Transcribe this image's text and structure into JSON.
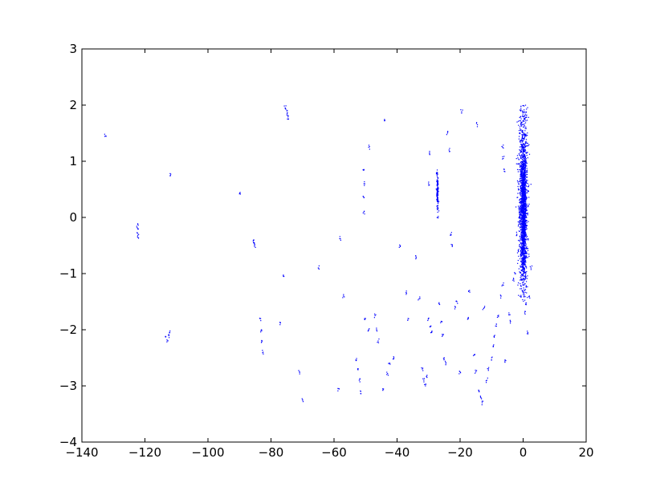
{
  "chart_data": {
    "type": "scatter",
    "title": "",
    "xlabel": "",
    "ylabel": "",
    "xlim": [
      -140,
      20
    ],
    "ylim": [
      -4,
      3
    ],
    "xticks": [
      -140,
      -120,
      -100,
      -80,
      -60,
      -40,
      -20,
      0,
      20
    ],
    "yticks": [
      -4,
      -3,
      -2,
      -1,
      0,
      1,
      2,
      3
    ],
    "xtick_labels": [
      "−140",
      "−120",
      "−100",
      "−80",
      "−60",
      "−40",
      "−20",
      "0",
      "20"
    ],
    "ytick_labels": [
      "−4",
      "−3",
      "−2",
      "−1",
      "0",
      "1",
      "2",
      "3"
    ],
    "grid": false,
    "legend": "none",
    "marker_color": "#0000ff",
    "series": [
      {
        "values": [
          [
            -132.5,
            1.45
          ],
          [
            -122.3,
            -0.12
          ],
          [
            -122.3,
            -0.2
          ],
          [
            -122.3,
            -0.28
          ],
          [
            -122.3,
            -0.35
          ],
          [
            -113.5,
            -2.12
          ],
          [
            -113.0,
            -2.18
          ],
          [
            -112.5,
            -2.1
          ],
          [
            -112.2,
            -2.05
          ],
          [
            -112.0,
            0.78
          ],
          [
            -90.0,
            0.42
          ],
          [
            -85.5,
            -0.4
          ],
          [
            -85.3,
            -0.45
          ],
          [
            -85.2,
            -0.5
          ],
          [
            -83.5,
            -1.8
          ],
          [
            -83.0,
            -2.0
          ],
          [
            -82.8,
            -2.2
          ],
          [
            -82.5,
            -2.4
          ],
          [
            -77.0,
            -1.88
          ],
          [
            -76.0,
            -1.05
          ],
          [
            -75.5,
            1.95
          ],
          [
            -75.0,
            1.9
          ],
          [
            -74.8,
            1.82
          ],
          [
            -74.5,
            1.75
          ],
          [
            -71.0,
            -2.75
          ],
          [
            -70.0,
            -3.25
          ],
          [
            -65.0,
            -0.9
          ],
          [
            -58.5,
            -3.05
          ],
          [
            -58.0,
            -0.38
          ],
          [
            -57.0,
            -1.4
          ],
          [
            -53.0,
            -2.55
          ],
          [
            -52.5,
            -2.7
          ],
          [
            -52.0,
            -2.9
          ],
          [
            -51.5,
            -3.1
          ],
          [
            -50.5,
            0.85
          ],
          [
            -50.5,
            0.6
          ],
          [
            -50.5,
            0.35
          ],
          [
            -50.5,
            0.1
          ],
          [
            -49.0,
            1.25
          ],
          [
            -50.0,
            -1.8
          ],
          [
            -49.0,
            -2.0
          ],
          [
            -47.0,
            -1.75
          ],
          [
            -46.5,
            -2.0
          ],
          [
            -46.0,
            -2.2
          ],
          [
            -44.0,
            1.72
          ],
          [
            -44.5,
            -3.08
          ],
          [
            -43.0,
            -2.78
          ],
          [
            -42.5,
            -2.6
          ],
          [
            -41.0,
            -2.5
          ],
          [
            -39.0,
            -0.52
          ],
          [
            -37.0,
            -1.35
          ],
          [
            -36.5,
            -1.8
          ],
          [
            -34.0,
            -0.7
          ],
          [
            -33.0,
            -1.45
          ],
          [
            -32.0,
            -2.7
          ],
          [
            -31.5,
            -2.9
          ],
          [
            -31.0,
            -3.0
          ],
          [
            -30.5,
            -2.85
          ],
          [
            -30.0,
            -1.8
          ],
          [
            -29.5,
            -1.95
          ],
          [
            -29.0,
            -2.05
          ],
          [
            -30.0,
            0.6
          ],
          [
            -29.7,
            1.15
          ],
          [
            -27.3,
            0.75
          ],
          [
            -27.2,
            0.6
          ],
          [
            -27.1,
            0.45
          ],
          [
            -27.0,
            0.3
          ],
          [
            -27.0,
            0.15
          ],
          [
            -27.2,
            0.0
          ],
          [
            -27.3,
            0.8
          ],
          [
            -27.1,
            0.5
          ],
          [
            -26.5,
            -1.55
          ],
          [
            -26.0,
            -1.85
          ],
          [
            -25.5,
            -2.1
          ],
          [
            -25.0,
            -2.5
          ],
          [
            -24.5,
            -2.6
          ],
          [
            -24.0,
            1.5
          ],
          [
            -23.5,
            1.2
          ],
          [
            -23.0,
            -0.3
          ],
          [
            -22.5,
            -0.5
          ],
          [
            -21.5,
            -1.6
          ],
          [
            -21.0,
            -1.5
          ],
          [
            -20.0,
            -2.75
          ],
          [
            -19.5,
            1.88
          ],
          [
            -17.5,
            -1.8
          ],
          [
            -17.0,
            -1.3
          ],
          [
            -15.5,
            -2.45
          ],
          [
            -15.0,
            -2.75
          ],
          [
            -14.5,
            1.65
          ],
          [
            -14.0,
            -3.1
          ],
          [
            -13.5,
            -3.2
          ],
          [
            -13.0,
            -3.3
          ],
          [
            -12.5,
            -1.62
          ],
          [
            -11.5,
            -2.9
          ],
          [
            -11.0,
            -2.7
          ],
          [
            -10.0,
            -2.5
          ],
          [
            -9.5,
            -2.3
          ],
          [
            -9.0,
            -2.1
          ],
          [
            -8.5,
            -1.9
          ],
          [
            -8.0,
            -1.75
          ],
          [
            -7.0,
            -1.4
          ],
          [
            -6.5,
            -1.2
          ],
          [
            -6.5,
            1.25
          ],
          [
            -6.3,
            1.05
          ],
          [
            -6.0,
            0.85
          ],
          [
            -5.5,
            -2.55
          ],
          [
            -4.5,
            -1.7
          ],
          [
            -4.0,
            -1.85
          ],
          [
            -3.0,
            -1.1
          ],
          [
            -2.5,
            -1.0
          ],
          [
            -2.0,
            -0.3
          ],
          [
            -1.5,
            -0.6
          ],
          [
            0.5,
            -1.7
          ],
          [
            0.8,
            -1.55
          ],
          [
            1.5,
            -2.05
          ],
          [
            2.0,
            -1.4
          ],
          [
            2.5,
            -0.9
          ]
        ]
      }
    ],
    "dense_clusters": [
      {
        "cx": 0,
        "cy": 0.3,
        "sx": 1.4,
        "sy": 1.55,
        "n": 1400,
        "ymin": -1.5,
        "ymax": 2.0
      },
      {
        "cx": 0.2,
        "cy": 0.0,
        "sx": 0.7,
        "sy": 1.0,
        "n": 900,
        "ymin": -1.4,
        "ymax": 1.3
      },
      {
        "cx": -27.2,
        "cy": 0.45,
        "sx": 0.25,
        "sy": 0.28,
        "n": 110,
        "ymin": 0.0,
        "ymax": 0.85
      }
    ]
  }
}
